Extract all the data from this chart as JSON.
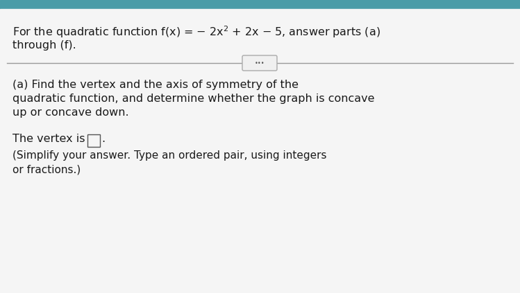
{
  "background_color": "#e8e8e8",
  "top_bar_color": "#4a9ca8",
  "text_color": "#1a1a1a",
  "divider_color": "#999999",
  "btn_bg": "#f0f0f0",
  "btn_edge": "#aaaaaa",
  "answer_box_edge": "#555555",
  "font_size_title": 11.5,
  "font_size_body": 11.5,
  "font_size_small": 11.0,
  "line1": "For the quadratic function​f(x) = − 2x",
  "line2": "through (f).",
  "part_a1": "(a) Find the vertex and the axis of symmetry of the",
  "part_a2": "quadratic function, and determine whether the graph is concave",
  "part_a3": "up or concave down.",
  "vertex_label": "The vertex is",
  "instr1": "(Simplify your answer. Type an ordered pair, using integers",
  "instr2": "or fractions.)"
}
